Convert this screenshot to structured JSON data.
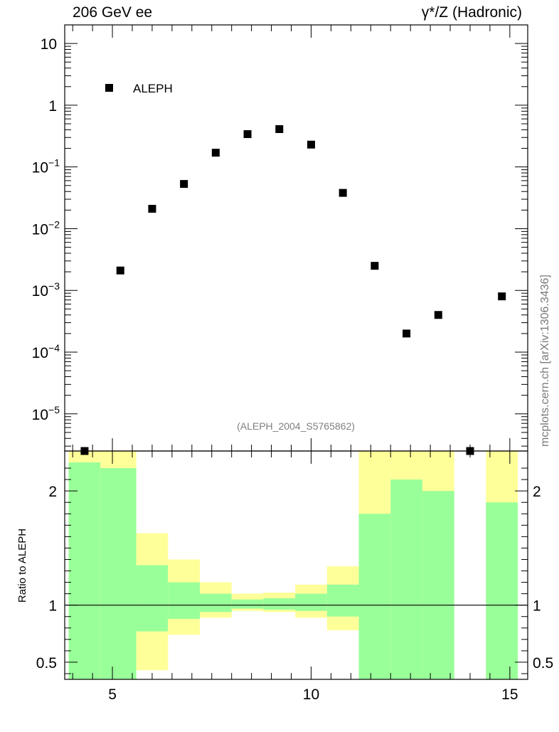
{
  "header": {
    "energy_label": "206 GeV ee",
    "process_label": "γ*/Z (Hadronic)"
  },
  "watermark": "mcplots.cern.ch [arXiv:1306.3436]",
  "analysis_tag": "(ALEPH_2004_S5765862)",
  "colors": {
    "data_marker": "#000000",
    "band_inner": "#99ff99",
    "band_outer": "#ffff99",
    "axis": "#000000",
    "text_muted": "#808080"
  },
  "chart_data": [
    {
      "type": "scatter",
      "scale": "log",
      "legend": {
        "placement": "top-left",
        "entries": [
          "ALEPH"
        ]
      },
      "xlim": [
        3.8,
        15.45
      ],
      "ylim": [
        2.5e-06,
        20
      ],
      "y_ticks": [
        {
          "value": 10,
          "label": "10"
        },
        {
          "value": 1,
          "label": "1"
        },
        {
          "value": 0.1,
          "label": "10",
          "exp": "−1"
        },
        {
          "value": 0.01,
          "label": "10",
          "exp": "−2"
        },
        {
          "value": 0.001,
          "label": "10",
          "exp": "−3"
        },
        {
          "value": 0.0001,
          "label": "10",
          "exp": "−4"
        },
        {
          "value": 1e-05,
          "label": "10",
          "exp": "−5"
        }
      ],
      "series": [
        {
          "name": "ALEPH",
          "x": [
            4.3,
            5.2,
            6.0,
            6.8,
            7.6,
            8.4,
            9.2,
            10.0,
            10.8,
            11.6,
            12.4,
            13.2,
            14.0,
            14.8
          ],
          "y": [
            2.5e-06,
            0.0021,
            0.021,
            0.053,
            0.17,
            0.34,
            0.41,
            0.23,
            0.038,
            0.0025,
            0.0002,
            0.0004,
            2.5e-06,
            0.0008
          ]
        }
      ]
    },
    {
      "type": "area",
      "ylabel": "Ratio to ALEPH",
      "xlim": [
        3.8,
        15.45
      ],
      "ylim": [
        0.35,
        2.35
      ],
      "x_ticks": [
        5,
        10,
        15
      ],
      "y_ticks": [
        {
          "value": 0.5,
          "label": "0.5"
        },
        {
          "value": 1,
          "label": "1"
        },
        {
          "value": 2,
          "label": "2"
        }
      ],
      "reference_line": 1,
      "bins": [
        {
          "x0": 3.9,
          "x1": 4.7,
          "outer": [
            0.35,
            2.35
          ],
          "inner": [
            0.35,
            2.25
          ]
        },
        {
          "x0": 4.7,
          "x1": 5.6,
          "outer": [
            0.35,
            2.35
          ],
          "inner": [
            0.35,
            2.2
          ]
        },
        {
          "x0": 5.6,
          "x1": 6.4,
          "outer": [
            0.43,
            1.63
          ],
          "inner": [
            0.77,
            1.35
          ]
        },
        {
          "x0": 6.4,
          "x1": 7.2,
          "outer": [
            0.74,
            1.4
          ],
          "inner": [
            0.88,
            1.2
          ]
        },
        {
          "x0": 7.2,
          "x1": 8.0,
          "outer": [
            0.89,
            1.2
          ],
          "inner": [
            0.94,
            1.1
          ]
        },
        {
          "x0": 8.0,
          "x1": 8.8,
          "outer": [
            0.95,
            1.1
          ],
          "inner": [
            0.97,
            1.05
          ]
        },
        {
          "x0": 8.8,
          "x1": 9.6,
          "outer": [
            0.94,
            1.11
          ],
          "inner": [
            0.96,
            1.06
          ]
        },
        {
          "x0": 9.6,
          "x1": 10.4,
          "outer": [
            0.89,
            1.18
          ],
          "inner": [
            0.95,
            1.1
          ]
        },
        {
          "x0": 10.4,
          "x1": 11.2,
          "outer": [
            0.78,
            1.34
          ],
          "inner": [
            0.9,
            1.18
          ]
        },
        {
          "x0": 11.2,
          "x1": 12.0,
          "outer": [
            0.35,
            2.35
          ],
          "inner": [
            0.35,
            1.8
          ]
        },
        {
          "x0": 12.0,
          "x1": 12.8,
          "outer": [
            0.35,
            2.35
          ],
          "inner": [
            0.35,
            2.1
          ]
        },
        {
          "x0": 12.8,
          "x1": 13.6,
          "outer": [
            0.35,
            2.35
          ],
          "inner": [
            0.35,
            2.0
          ]
        },
        {
          "x0": 14.4,
          "x1": 15.2,
          "outer": [
            0.35,
            2.35
          ],
          "inner": [
            0.35,
            1.9
          ]
        }
      ]
    }
  ]
}
